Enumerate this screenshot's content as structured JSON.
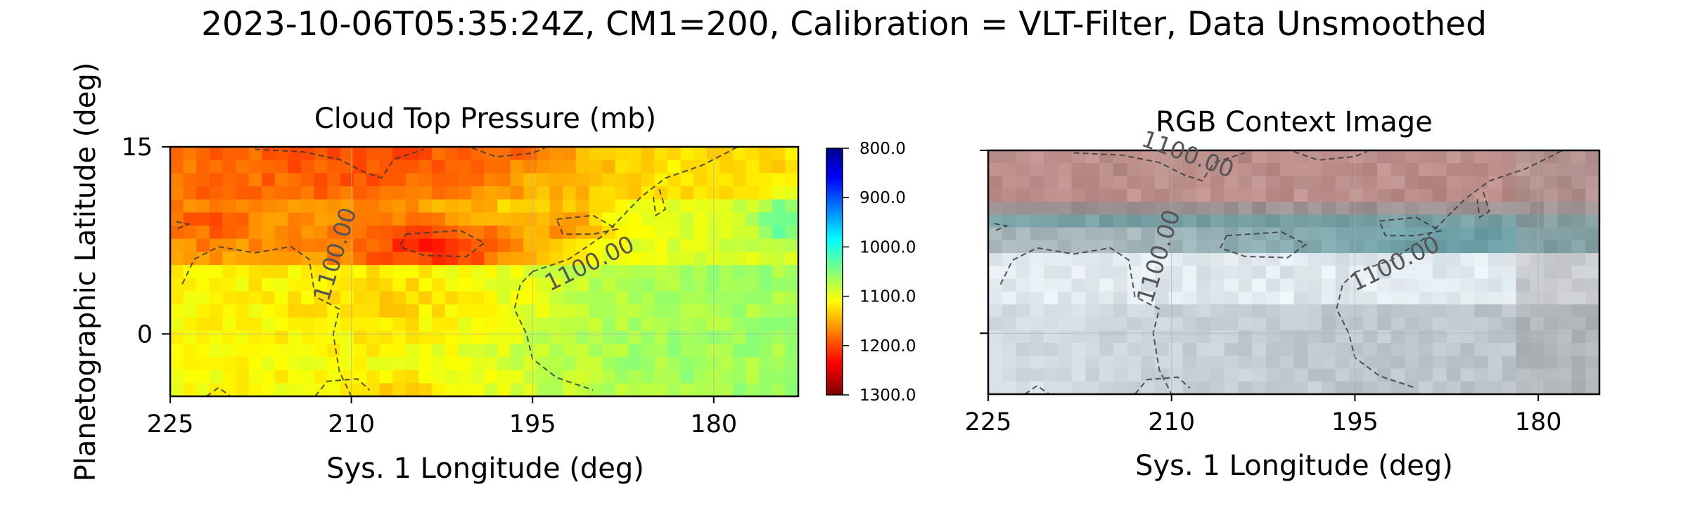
{
  "suptitle": "2023-10-06T05:35:24Z, CM1=200, Calibration = VLT-Filter, Data Unsmoothed",
  "ylabel": "Planetographic Latitude (deg)",
  "panels": {
    "left": {
      "title": "Cloud Top Pressure (mb)",
      "xlabel": "Sys. 1 Longitude (deg)"
    },
    "right": {
      "title": "RGB Context Image",
      "xlabel": "Sys. 1 Longitude (deg)"
    }
  },
  "contour_label": "1100.00",
  "chart_data": [
    {
      "type": "heatmap",
      "title": "Cloud Top Pressure (mb)",
      "xlabel": "Sys. 1 Longitude (deg)",
      "ylabel": "Planetographic Latitude (deg)",
      "xlim": [
        225,
        173
      ],
      "ylim": [
        -5,
        15
      ],
      "xticks": [
        225,
        210,
        195,
        180
      ],
      "yticks": [
        0,
        15
      ],
      "colormap": "jet (reversed, red = high pressure)",
      "colorbar": {
        "min": 800,
        "max": 1300,
        "ticks": [
          "800.0",
          "900.0",
          "1000.0",
          "1100.0",
          "1200.0",
          "1300.0"
        ]
      },
      "contour_level": 1100,
      "regions": [
        {
          "description": "northern band",
          "lat_range": [
            11,
            15
          ],
          "lon_range": [
            225,
            186
          ],
          "pressure_mb": 1170
        },
        {
          "description": "orange belt",
          "lat_range": [
            6,
            11
          ],
          "lon_range": [
            225,
            200
          ],
          "pressure_mb": 1160
        },
        {
          "description": "deep red spot",
          "lat": 7,
          "lon": 202,
          "pressure_mb": 1230
        },
        {
          "description": "yellow-green zone",
          "lat_range": [
            0,
            5
          ],
          "lon_range": [
            225,
            195
          ],
          "pressure_mb": 1110
        },
        {
          "description": "green zone",
          "lat_range": [
            -5,
            5
          ],
          "lon_range": [
            195,
            173
          ],
          "pressure_mb": 1060
        },
        {
          "description": "cyan spot",
          "lat": 9,
          "lon": 174,
          "pressure_mb": 1010
        }
      ],
      "grid": true
    },
    {
      "type": "heatmap",
      "title": "RGB Context Image",
      "xlabel": "Sys. 1 Longitude (deg)",
      "xlim": [
        225,
        175
      ],
      "ylim": [
        -5,
        15
      ],
      "xticks": [
        225,
        210,
        195,
        180
      ],
      "contour_level": 1100,
      "content": "true-color pixelated context image: brownish-red north band, teal-grey belt near 8 deg, pale whitish zone near 2-5 deg, grey-blue to the south",
      "grid": true
    }
  ],
  "colors": {
    "north_band": "#b98985",
    "teal_belt": "#6fa2a8",
    "pale_zone": "#e7eef2",
    "south": "#bcc6cc",
    "contour": "#3a3a3a"
  }
}
